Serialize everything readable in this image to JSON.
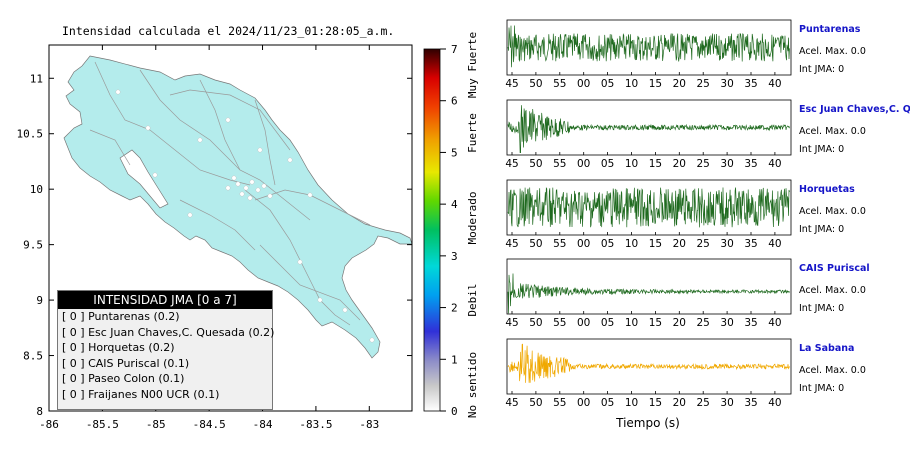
{
  "map": {
    "title": "Intensidad calculada el 2024/11/23_01:28:05_a.m.",
    "lat_ticks": [
      "11",
      "10.5",
      "10",
      "9.5",
      "9",
      "8.5",
      "8"
    ],
    "lon_ticks": [
      "-86",
      "-85.5",
      "-85",
      "-84.5",
      "-84",
      "-83.5",
      "-83"
    ],
    "land_color": "#b4ecec"
  },
  "colorbar": {
    "ticks": [
      "0",
      "1",
      "2",
      "3",
      "4",
      "5",
      "6",
      "7"
    ],
    "labels": [
      "No sentido",
      "Debil",
      "Moderado",
      "Fuerte",
      "Muy Fuerte"
    ]
  },
  "legend": {
    "title": "INTENSIDAD JMA [0 a 7]",
    "rows": [
      {
        "level": "[ 0 ]",
        "name": "Puntarenas (0.2)"
      },
      {
        "level": "[ 0 ]",
        "name": "Esc Juan Chaves,C. Quesada (0.2)"
      },
      {
        "level": "[ 0 ]",
        "name": "Horquetas (0.2)"
      },
      {
        "level": "[ 0 ]",
        "name": "CAIS Puriscal (0.1)"
      },
      {
        "level": "[ 0 ]",
        "name": "Paseo Colon (0.1)"
      },
      {
        "level": "[ 0 ]",
        "name": "Fraijanes N00 UCR (0.1)"
      }
    ]
  },
  "traces": {
    "xlabel": "Tiempo (s)",
    "x_ticks": [
      "45",
      "50",
      "55",
      "00",
      "05",
      "10",
      "15",
      "20",
      "25",
      "30",
      "35",
      "40"
    ],
    "stations": [
      {
        "name": "Puntarenas",
        "acel": "Acel. Max. 0.0",
        "int": "Int JMA: 0",
        "color": "#1f6a1f",
        "profile": "uniform-start"
      },
      {
        "name": "Esc Juan Chaves,C. Qu",
        "acel": "Acel. Max. 0.0",
        "int": "Int JMA: 0",
        "color": "#1f6a1f",
        "profile": "early-burst"
      },
      {
        "name": "Horquetas",
        "acel": "Acel. Max. 0.0",
        "int": "Int JMA: 0",
        "color": "#1f6a1f",
        "profile": "uniform"
      },
      {
        "name": "CAIS Puriscal",
        "acel": "Acel. Max. 0.0",
        "int": "Int JMA: 0",
        "color": "#1f6a1f",
        "profile": "spike-decay"
      },
      {
        "name": "La Sabana",
        "acel": "Acel. Max. 0.0",
        "int": "Int JMA: 0",
        "color": "#f0a800",
        "profile": "early-burst"
      }
    ]
  },
  "chart_data": [
    {
      "type": "scatter",
      "title": "Intensidad calculada el 2024/11/23_01:28:05_a.m.",
      "xlim": [
        -86,
        -82.6
      ],
      "ylim": [
        8,
        11.3
      ],
      "x_ticks": [
        -86,
        -85.5,
        -85,
        -84.5,
        -84,
        -83.5,
        -83
      ],
      "y_ticks": [
        8,
        8.5,
        9,
        9.5,
        10,
        10.5,
        11
      ],
      "colorbar_range": [
        0,
        7
      ]
    },
    {
      "type": "line",
      "xlabel": "Tiempo (s)",
      "series": [
        {
          "name": "Puntarenas"
        },
        {
          "name": "Esc Juan Chaves,C. Qu"
        },
        {
          "name": "Horquetas"
        },
        {
          "name": "CAIS Puriscal"
        },
        {
          "name": "La Sabana"
        }
      ]
    }
  ]
}
